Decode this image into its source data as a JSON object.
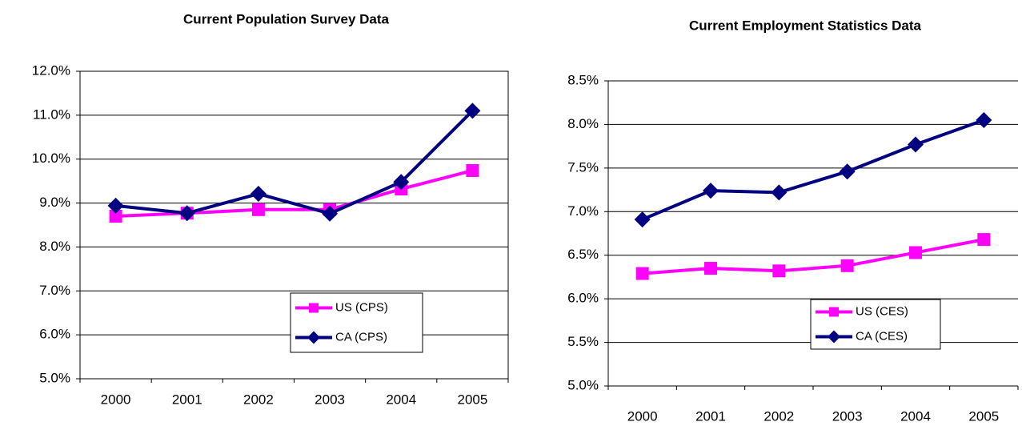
{
  "chart_data": [
    {
      "type": "line",
      "title": "Current Population Survey Data",
      "categories": [
        "2000",
        "2001",
        "2002",
        "2003",
        "2004",
        "2005"
      ],
      "series": [
        {
          "name": "US (CPS)",
          "color": "#ff00ff",
          "marker": "square",
          "values": [
            8.7,
            8.77,
            8.85,
            8.85,
            9.32,
            9.74
          ]
        },
        {
          "name": "CA (CPS)",
          "color": "#000080",
          "marker": "diamond",
          "values": [
            8.94,
            8.77,
            9.21,
            8.76,
            9.48,
            11.1
          ]
        }
      ],
      "ylim": [
        5,
        12
      ],
      "yticks": [
        {
          "value": 5,
          "label": "5.0%"
        },
        {
          "value": 6,
          "label": "6.0%"
        },
        {
          "value": 7,
          "label": "7.0%"
        },
        {
          "value": 8,
          "label": "8.0%"
        },
        {
          "value": 9,
          "label": "9.0%"
        },
        {
          "value": 10,
          "label": "10.0%"
        },
        {
          "value": 11,
          "label": "11.0%"
        },
        {
          "value": 12,
          "label": "12.0%"
        }
      ],
      "grid": true,
      "legend": "lower right"
    },
    {
      "type": "line",
      "title": "Current Employment Statistics Data",
      "categories": [
        "2000",
        "2001",
        "2002",
        "2003",
        "2004",
        "2005"
      ],
      "series": [
        {
          "name": "US (CES)",
          "color": "#ff00ff",
          "marker": "square",
          "values": [
            6.29,
            6.35,
            6.32,
            6.38,
            6.53,
            6.68
          ]
        },
        {
          "name": "CA (CES)",
          "color": "#000080",
          "marker": "diamond",
          "values": [
            6.91,
            7.24,
            7.22,
            7.46,
            7.77,
            8.05
          ]
        }
      ],
      "ylim": [
        5,
        8.5
      ],
      "yticks": [
        {
          "value": 5,
          "label": "5.0%"
        },
        {
          "value": 5.5,
          "label": "5.5%"
        },
        {
          "value": 6,
          "label": "6.0%"
        },
        {
          "value": 6.5,
          "label": "6.5%"
        },
        {
          "value": 7,
          "label": "7.0%"
        },
        {
          "value": 7.5,
          "label": "7.5%"
        },
        {
          "value": 8,
          "label": "8.0%"
        },
        {
          "value": 8.5,
          "label": "8.5%"
        }
      ],
      "grid": true,
      "legend": "lower right"
    }
  ]
}
